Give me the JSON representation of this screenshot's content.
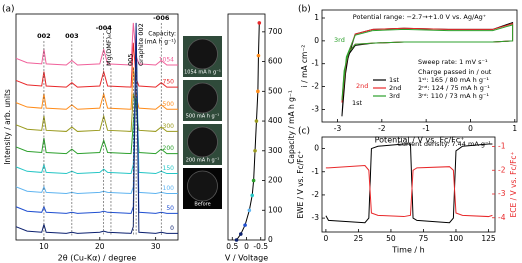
{
  "chart_data": [
    {
      "type": "line",
      "panel": "(a)",
      "xlabel": "2θ (Cu-Kα) / degree",
      "ylabel": "Intensity / arb. units",
      "xlim": [
        5,
        34
      ],
      "xticks": [
        10,
        20,
        30
      ],
      "ylim": [
        0,
        10.2
      ],
      "x": [
        5,
        7,
        9.6,
        10,
        10.4,
        14,
        15,
        16,
        20,
        20.7,
        21.4,
        25.6,
        26,
        26.5,
        27,
        30,
        31,
        32,
        34
      ],
      "series": [
        {
          "name": "1054",
          "color": "#f0609a",
          "values": [
            8.2,
            8.0,
            7.95,
            8.6,
            7.95,
            7.9,
            8.1,
            7.9,
            7.95,
            8.6,
            7.95,
            7.9,
            9.8,
            8.3,
            7.95,
            7.9,
            8.1,
            7.9,
            7.9
          ]
        },
        {
          "name": "750",
          "color": "#e8282a",
          "values": [
            7.2,
            7.0,
            6.95,
            7.6,
            6.95,
            6.9,
            7.1,
            6.9,
            6.95,
            7.6,
            6.95,
            6.9,
            8.9,
            7.3,
            6.95,
            6.9,
            7.1,
            6.9,
            6.9
          ]
        },
        {
          "name": "500",
          "color": "#ff8c1a",
          "values": [
            6.2,
            6.0,
            5.95,
            6.6,
            5.95,
            5.9,
            6.1,
            5.9,
            5.95,
            6.6,
            5.95,
            5.9,
            7.8,
            6.5,
            5.95,
            5.9,
            6.1,
            5.9,
            5.9
          ]
        },
        {
          "name": "300",
          "color": "#9a9a1e",
          "values": [
            5.2,
            5.0,
            4.95,
            5.6,
            4.95,
            4.9,
            5.1,
            4.9,
            4.95,
            5.6,
            4.95,
            4.9,
            6.6,
            6.0,
            4.95,
            4.9,
            5.1,
            4.9,
            4.9
          ]
        },
        {
          "name": "200",
          "color": "#2ca02c",
          "values": [
            4.2,
            4.0,
            3.95,
            4.6,
            3.95,
            3.9,
            4.1,
            3.9,
            3.95,
            4.5,
            3.95,
            3.9,
            5.3,
            6.4,
            3.95,
            3.9,
            4.1,
            3.9,
            3.9
          ]
        },
        {
          "name": "150",
          "color": "#26c6c6",
          "values": [
            3.3,
            3.1,
            3.05,
            3.4,
            3.05,
            3.0,
            3.1,
            3.0,
            3.05,
            3.2,
            3.05,
            3.0,
            3.4,
            9.0,
            3.05,
            3.0,
            3.1,
            3.0,
            3.0
          ]
        },
        {
          "name": "100",
          "color": "#5fb4f0",
          "values": [
            2.4,
            2.2,
            2.15,
            2.4,
            2.15,
            2.1,
            2.15,
            2.1,
            2.15,
            2.2,
            2.15,
            2.1,
            2.4,
            9.2,
            2.15,
            2.1,
            2.15,
            2.1,
            2.1
          ]
        },
        {
          "name": "50",
          "color": "#1f4fd1",
          "values": [
            1.5,
            1.3,
            1.25,
            1.5,
            1.25,
            1.2,
            1.25,
            1.2,
            1.25,
            1.3,
            1.25,
            1.2,
            1.5,
            9.5,
            1.25,
            1.2,
            1.25,
            1.2,
            1.2
          ]
        },
        {
          "name": "0",
          "color": "#0a1f6e",
          "values": [
            0.6,
            0.4,
            0.35,
            0.7,
            0.35,
            0.3,
            0.35,
            0.3,
            0.35,
            0.4,
            0.35,
            0.3,
            0.6,
            9.8,
            0.35,
            0.3,
            0.35,
            0.3,
            0.3
          ]
        }
      ],
      "legend_title": [
        "Capacity:",
        "(mA h g⁻¹)"
      ],
      "annotations": [
        {
          "text": "002",
          "x": 10
        },
        {
          "text": "003",
          "x": 15
        },
        {
          "text": "-004",
          "x": 20.7
        },
        {
          "text": "Mg(DMF)₆Cl₂",
          "x": 22
        },
        {
          "text": "005",
          "x": 26
        },
        {
          "text": "Graphite 002",
          "x": 26.5
        },
        {
          "text": "-006",
          "x": 31
        }
      ],
      "insets": [
        "1054 mA h g⁻¹",
        "500 mA h g⁻¹",
        "200 mA h g⁻¹",
        "Before"
      ]
    },
    {
      "type": "line",
      "xlabel": "V / Voltage",
      "ylabel": "Capacity / mA h g⁻¹",
      "xlim": [
        0.65,
        -0.65
      ],
      "xticks": [
        0.5,
        0,
        -0.5
      ],
      "ylim": [
        0,
        760
      ],
      "yticks": [
        0,
        100,
        200,
        300,
        400,
        500,
        600,
        700
      ],
      "x": [
        0.35,
        0.2,
        0.05,
        -0.1,
        -0.2,
        -0.25,
        -0.3,
        -0.35,
        -0.4,
        -0.42,
        -0.45
      ],
      "series": [
        {
          "color": "#000000",
          "values": [
            0,
            20,
            50,
            100,
            150,
            200,
            300,
            400,
            500,
            620,
            730
          ],
          "marker_colors": [
            "#0a1f6e",
            "#0a1f6e",
            "#1f4fd1",
            "#5fb4f0",
            "#26c6c6",
            "#2ca02c",
            "#9a9a1e",
            "#9a9a1e",
            "#ff8c1a",
            "#ff8c1a",
            "#e8282a"
          ]
        }
      ]
    },
    {
      "type": "line",
      "panel": "(b)",
      "title": "Potential range: −2.7→+1.0 V vs. Ag/Ag⁺",
      "xlabel": "Potential / V vs. Fc/Fc⁺",
      "ylabel": "i / mA cm⁻²",
      "xlim": [
        -3.35,
        1.05
      ],
      "xticks": [
        -3,
        -2,
        -1,
        0,
        1
      ],
      "ylim": [
        -3.55,
        1.35
      ],
      "yticks": [
        -3,
        -2,
        -1,
        0,
        1
      ],
      "x": [
        -2.9,
        -2.8,
        -2.6,
        -2.2,
        -1.5,
        -0.5,
        0.5,
        0.95,
        0.95,
        0.5,
        -0.5,
        -1.5,
        -2.2,
        -2.6,
        -2.75,
        -2.85,
        -2.9
      ],
      "series": [
        {
          "name": "1st",
          "color": "#000000",
          "values": [
            -3.3,
            -1.0,
            0.3,
            0.5,
            0.55,
            0.5,
            0.5,
            0.8,
            0.0,
            -0.05,
            -0.05,
            -0.05,
            -0.1,
            -0.2,
            -0.6,
            -1.8,
            -3.3
          ]
        },
        {
          "name": "2nd",
          "color": "#e8282a",
          "values": [
            -2.7,
            -0.8,
            0.3,
            0.5,
            0.55,
            0.5,
            0.5,
            0.75,
            0.0,
            -0.05,
            -0.05,
            -0.05,
            -0.1,
            -0.15,
            -0.5,
            -1.4,
            -2.7
          ]
        },
        {
          "name": "3rd",
          "color": "#2ca02c",
          "values": [
            -2.6,
            -0.7,
            0.25,
            0.45,
            0.5,
            0.45,
            0.45,
            0.7,
            0.0,
            -0.05,
            -0.05,
            -0.05,
            -0.1,
            -0.15,
            -0.5,
            -1.3,
            -2.6
          ]
        }
      ],
      "annotations": [
        "3rd",
        "2nd",
        "1st"
      ],
      "notes": [
        "Sweep rate: 1 mV s⁻¹",
        "Charge passed in / out"
      ],
      "charge_rows": [
        "1ˢᵗ: 165 / 80 mA h g⁻¹",
        "2ⁿᵈ: 124 / 75 mA h g⁻¹",
        "3ʳᵈ: 110 / 73 mA h g⁻¹"
      ]
    },
    {
      "type": "line",
      "panel": "(c)",
      "title": "Current density: 7.44 mA g⁻¹",
      "xlabel": "Time / h",
      "ylabel": "EWE / V vs. Fc/Fc⁺",
      "y2label": "ECE / V vs. Fc/Fc⁺",
      "xlim": [
        -3,
        130
      ],
      "xticks": [
        0,
        25,
        50,
        75,
        100,
        125
      ],
      "ylim": [
        -3.6,
        0.5
      ],
      "yticks": [
        -3,
        -2,
        -1,
        0
      ],
      "y2lim": [
        -4.6,
        -0.6
      ],
      "y2ticks": [
        -4,
        -3,
        -2,
        -1
      ],
      "x": [
        0,
        2,
        30,
        33,
        35,
        40,
        60,
        65,
        67,
        70,
        95,
        98,
        100,
        105,
        125,
        128
      ],
      "series": [
        {
          "color": "#000000",
          "values": [
            -2.9,
            -3.1,
            -3.2,
            -3.0,
            0.0,
            0.1,
            0.2,
            0.2,
            -3.0,
            -3.1,
            -3.2,
            -3.0,
            -0.1,
            0.1,
            0.2,
            0.2
          ]
        },
        {
          "color": "#e8282a",
          "axis": "y2",
          "values": [
            -1.9,
            -1.9,
            -1.8,
            -2.0,
            -3.8,
            -3.9,
            -3.95,
            -3.9,
            -2.0,
            -1.9,
            -1.85,
            -2.0,
            -3.8,
            -3.9,
            -3.95,
            -3.9
          ]
        }
      ]
    }
  ]
}
